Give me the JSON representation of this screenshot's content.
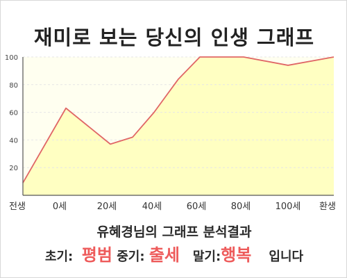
{
  "chart_data": {
    "type": "area",
    "title": "재미로 보는 당신의 인생 그래프",
    "x_tick_labels": [
      "전생",
      "0세",
      "20세",
      "40세",
      "60세",
      "80세",
      "100세",
      "환생"
    ],
    "y_ticks": [
      20,
      40,
      60,
      80,
      100
    ],
    "ylim": [
      0,
      100
    ],
    "grid": true,
    "series": [
      {
        "points": [
          {
            "x": "전생",
            "y": 9
          },
          {
            "x": "0세",
            "y": 63
          },
          {
            "x": "20세",
            "y": 37
          },
          {
            "x": "30세",
            "y": 42
          },
          {
            "x": "40세",
            "y": 60
          },
          {
            "x": "50세",
            "y": 84
          },
          {
            "x": "60세",
            "y": 100
          },
          {
            "x": "80세",
            "y": 100
          },
          {
            "x": "100세",
            "y": 94
          },
          {
            "x": "환생",
            "y": 100
          }
        ]
      }
    ],
    "colors": {
      "line": "#e06666",
      "fill": "#ffffc2",
      "plot_bg": "#fffff0",
      "grid": "#e6e6e6",
      "axis": "#555555"
    }
  },
  "result": {
    "subtitle": "유혜경님의 그래프 분석결과",
    "early_label": "초기:",
    "early_value": "평범",
    "middle_label": "중기:",
    "middle_value": "출세",
    "late_label": "말기:",
    "late_value": "행복",
    "ending": "입니다"
  }
}
